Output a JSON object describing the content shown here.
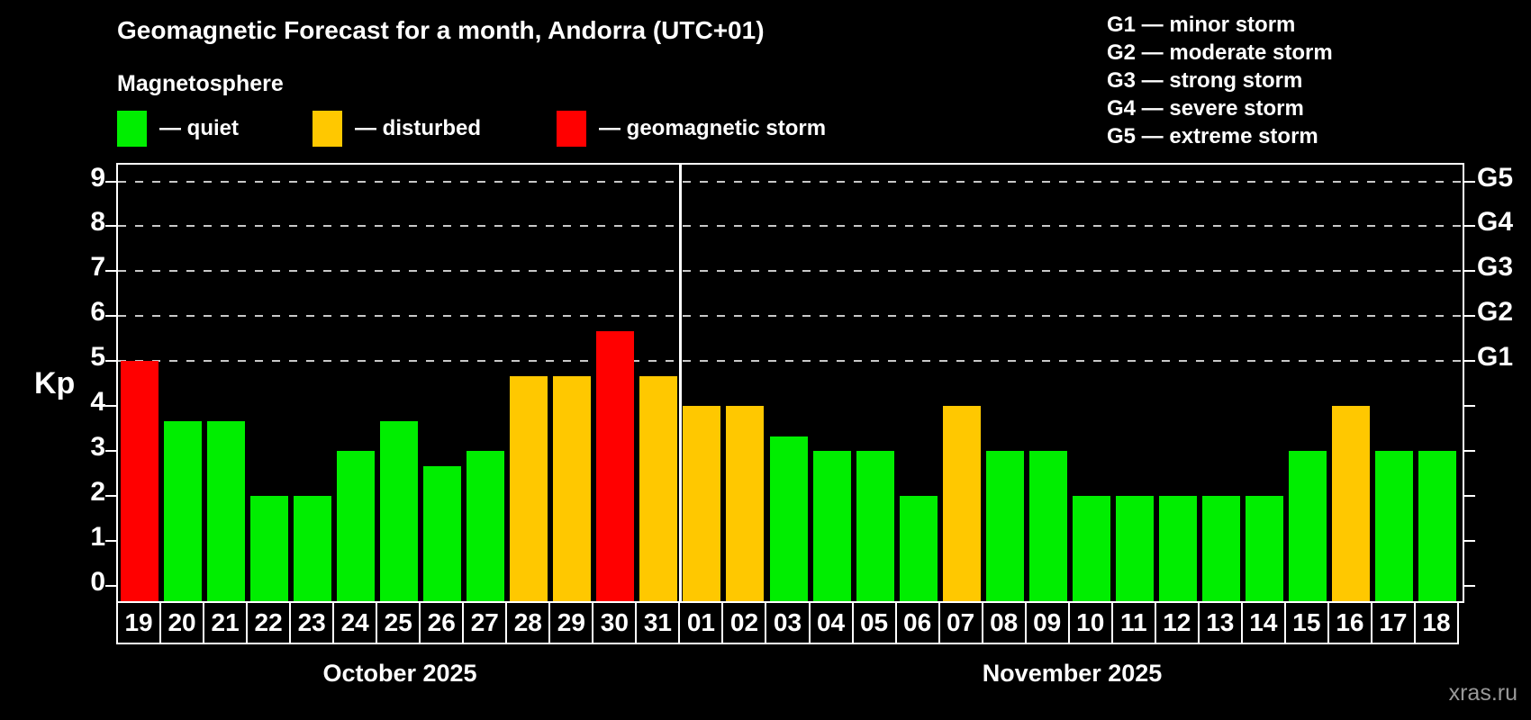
{
  "header": {
    "title": "Geomagnetic Forecast for a month, Andorra (UTC+01)",
    "subtitle": "Magnetosphere"
  },
  "legend": {
    "items": [
      {
        "status": "quiet",
        "label": "— quiet",
        "color": "#00ee00"
      },
      {
        "status": "disturbed",
        "label": "— disturbed",
        "color": "#ffc800"
      },
      {
        "status": "storm",
        "label": "— geomagnetic storm",
        "color": "#ff0000"
      }
    ]
  },
  "storm_scale": [
    "G1 — minor storm",
    "G2 — moderate storm",
    "G3 — strong storm",
    "G4 — severe storm",
    "G5 — extreme storm"
  ],
  "colors": {
    "quiet": "#00ee00",
    "disturbed": "#ffc800",
    "storm": "#ff0000",
    "gridline": "#c8c8c8",
    "axis": "#ffffff",
    "watermark": "#999999"
  },
  "chart_data": {
    "type": "bar",
    "ylabel": "Kp",
    "ylim": [
      0,
      9
    ],
    "yticks": [
      0,
      1,
      2,
      3,
      4,
      5,
      6,
      7,
      8,
      9
    ],
    "gridlines_kp": [
      5,
      6,
      7,
      8,
      9
    ],
    "grid": "dashed",
    "legend_position": "top-left",
    "right_axis_labels": [
      {
        "label": "G1",
        "kp": 5
      },
      {
        "label": "G2",
        "kp": 6
      },
      {
        "label": "G3",
        "kp": 7
      },
      {
        "label": "G4",
        "kp": 8
      },
      {
        "label": "G5",
        "kp": 9
      }
    ],
    "months": [
      {
        "label": "October 2025",
        "days": [
          {
            "day": "19",
            "kp": 5.0,
            "status": "storm"
          },
          {
            "day": "20",
            "kp": 3.67,
            "status": "quiet"
          },
          {
            "day": "21",
            "kp": 3.67,
            "status": "quiet"
          },
          {
            "day": "22",
            "kp": 2.0,
            "status": "quiet"
          },
          {
            "day": "23",
            "kp": 2.0,
            "status": "quiet"
          },
          {
            "day": "24",
            "kp": 3.0,
            "status": "quiet"
          },
          {
            "day": "25",
            "kp": 3.67,
            "status": "quiet"
          },
          {
            "day": "26",
            "kp": 2.67,
            "status": "quiet"
          },
          {
            "day": "27",
            "kp": 3.0,
            "status": "quiet"
          },
          {
            "day": "28",
            "kp": 4.67,
            "status": "disturbed"
          },
          {
            "day": "29",
            "kp": 4.67,
            "status": "disturbed"
          },
          {
            "day": "30",
            "kp": 5.67,
            "status": "storm"
          },
          {
            "day": "31",
            "kp": 4.67,
            "status": "disturbed"
          }
        ]
      },
      {
        "label": "November 2025",
        "days": [
          {
            "day": "01",
            "kp": 4.0,
            "status": "disturbed"
          },
          {
            "day": "02",
            "kp": 4.0,
            "status": "disturbed"
          },
          {
            "day": "03",
            "kp": 3.33,
            "status": "quiet"
          },
          {
            "day": "04",
            "kp": 3.0,
            "status": "quiet"
          },
          {
            "day": "05",
            "kp": 3.0,
            "status": "quiet"
          },
          {
            "day": "06",
            "kp": 2.0,
            "status": "quiet"
          },
          {
            "day": "07",
            "kp": 4.0,
            "status": "disturbed"
          },
          {
            "day": "08",
            "kp": 3.0,
            "status": "quiet"
          },
          {
            "day": "09",
            "kp": 3.0,
            "status": "quiet"
          },
          {
            "day": "10",
            "kp": 2.0,
            "status": "quiet"
          },
          {
            "day": "11",
            "kp": 2.0,
            "status": "quiet"
          },
          {
            "day": "12",
            "kp": 2.0,
            "status": "quiet"
          },
          {
            "day": "13",
            "kp": 2.0,
            "status": "quiet"
          },
          {
            "day": "14",
            "kp": 2.0,
            "status": "quiet"
          },
          {
            "day": "15",
            "kp": 3.0,
            "status": "quiet"
          },
          {
            "day": "16",
            "kp": 4.0,
            "status": "disturbed"
          },
          {
            "day": "17",
            "kp": 3.0,
            "status": "quiet"
          },
          {
            "day": "18",
            "kp": 3.0,
            "status": "quiet"
          }
        ]
      }
    ]
  },
  "watermark": "xras.ru"
}
